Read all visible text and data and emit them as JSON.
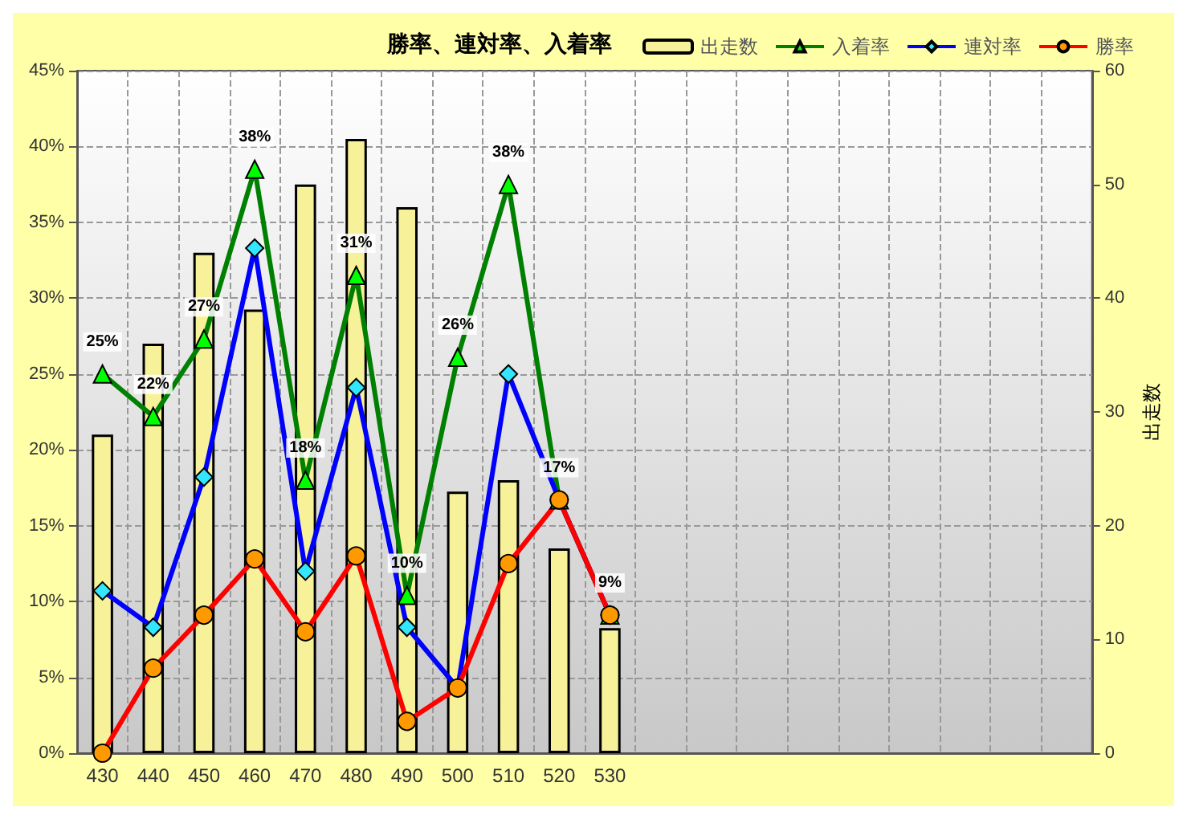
{
  "chart_data": {
    "type": "line",
    "title": "勝率、連対率、入着率",
    "y2label": "出走数",
    "categories": [
      "430",
      "440",
      "450",
      "460",
      "470",
      "480",
      "490",
      "500",
      "510",
      "520",
      "530",
      null,
      null,
      null,
      null,
      null,
      null,
      null,
      null,
      null
    ],
    "series": [
      {
        "name": "出走数",
        "type": "bar",
        "axis": "y2",
        "color": "#f7f29a",
        "values": [
          28,
          36,
          44,
          39,
          50,
          54,
          48,
          23,
          24,
          18,
          11,
          null,
          null,
          null,
          null,
          null,
          null,
          null,
          null,
          null
        ]
      },
      {
        "name": "入着率",
        "color": "#008000",
        "marker": "triangle",
        "values": [
          25,
          22.2,
          27.3,
          38.5,
          18,
          31.5,
          10.4,
          26.1,
          37.5,
          16.7,
          9.1,
          null,
          null,
          null,
          null,
          null,
          null,
          null,
          null,
          null
        ],
        "value_labels": [
          "25%",
          "22%",
          "27%",
          "38%",
          "18%",
          "31%",
          "10%",
          "26%",
          "38%",
          "17%",
          "9%",
          null,
          null,
          null,
          null,
          null,
          null,
          null,
          null,
          null
        ]
      },
      {
        "name": "連対率",
        "color": "#0000ff",
        "marker": "diamond",
        "values": [
          10.7,
          8.3,
          18.2,
          33.3,
          12,
          24.1,
          8.3,
          4.3,
          25,
          16.7,
          9.1,
          null,
          null,
          null,
          null,
          null,
          null,
          null,
          null,
          null
        ]
      },
      {
        "name": "勝率",
        "color": "#ff0000",
        "marker": "circle",
        "values": [
          0,
          5.6,
          9.1,
          12.8,
          8,
          13,
          2.1,
          4.3,
          12.5,
          16.7,
          9.1,
          null,
          null,
          null,
          null,
          null,
          null,
          null,
          null,
          null
        ]
      }
    ],
    "ylim": [
      0,
      45
    ],
    "yticks": [
      {
        "value": 0,
        "label": "0%"
      },
      {
        "value": 5,
        "label": "5%"
      },
      {
        "value": 10,
        "label": "10%"
      },
      {
        "value": 15,
        "label": "15%"
      },
      {
        "value": 20,
        "label": "20%"
      },
      {
        "value": 25,
        "label": "25%"
      },
      {
        "value": 30,
        "label": "30%"
      },
      {
        "value": 35,
        "label": "35%"
      },
      {
        "value": 40,
        "label": "40%"
      },
      {
        "value": 45,
        "label": "45%"
      }
    ],
    "y2lim": [
      0,
      60
    ],
    "y2ticks": [
      0,
      10,
      20,
      30,
      40,
      50,
      60
    ],
    "grid": true,
    "legend": "top right",
    "line_style": "solid"
  }
}
